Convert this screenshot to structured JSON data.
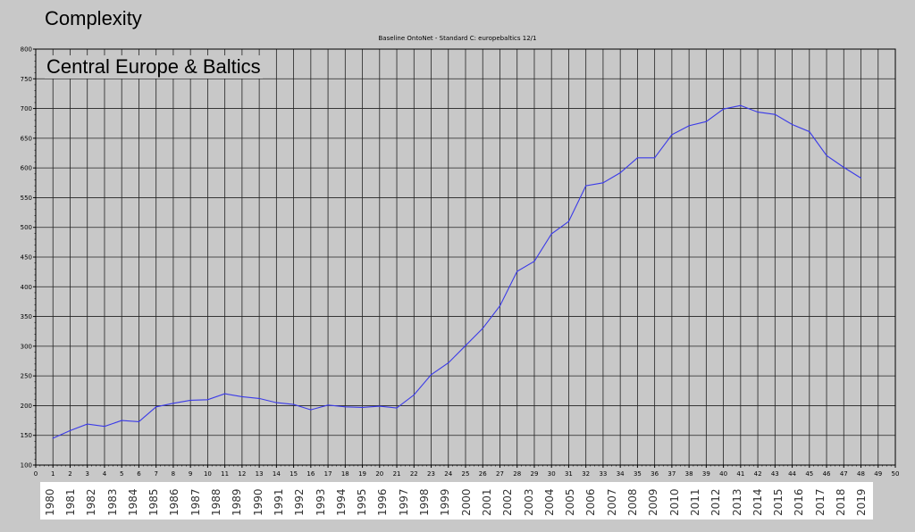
{
  "page_title": "Complexity",
  "region_label": "Central Europe & Baltics",
  "colors": {
    "background": "#c8c8c8",
    "grid": "#222222",
    "line": "#3a3ae8",
    "year_strip": "#ffffff"
  },
  "chart_data": {
    "type": "line",
    "title": "Baseline OntoNet - Standard C:  europebaltics   12/1",
    "xlabel": "",
    "ylabel": "",
    "xlim": [
      0,
      50
    ],
    "ylim": [
      100,
      800
    ],
    "x_ticks": [
      0,
      1,
      2,
      3,
      4,
      5,
      6,
      7,
      8,
      9,
      10,
      11,
      12,
      13,
      14,
      15,
      16,
      17,
      18,
      19,
      20,
      21,
      22,
      23,
      24,
      25,
      26,
      27,
      28,
      29,
      30,
      31,
      32,
      33,
      34,
      35,
      36,
      37,
      38,
      39,
      40,
      41,
      42,
      43,
      44,
      45,
      46,
      47,
      48,
      49,
      50
    ],
    "y_ticks": [
      100,
      150,
      200,
      250,
      300,
      350,
      400,
      450,
      500,
      550,
      600,
      650,
      700,
      750,
      800
    ],
    "grid": true,
    "legend": "none",
    "x": [
      1,
      2,
      3,
      4,
      5,
      6,
      7,
      8,
      9,
      10,
      11,
      12,
      13,
      14,
      15,
      16,
      17,
      18,
      19,
      20,
      21,
      22,
      23,
      24,
      25,
      26,
      27,
      28,
      29,
      30,
      31,
      32,
      33,
      34,
      35,
      36,
      37,
      38,
      39,
      40,
      41,
      42,
      43,
      44,
      45,
      46,
      47,
      48
    ],
    "series": [
      {
        "values": [
          145,
          158,
          169,
          165,
          175,
          173,
          198,
          204,
          209,
          210,
          220,
          215,
          212,
          205,
          202,
          193,
          201,
          198,
          197,
          199,
          196,
          218,
          252,
          272,
          301,
          330,
          368,
          426,
          443,
          489,
          510,
          570,
          575,
          592,
          617,
          617,
          656,
          671,
          678,
          699,
          705,
          694,
          690,
          673,
          661,
          621,
          601,
          583
        ]
      }
    ],
    "year_labels": [
      "1980",
      "1981",
      "1982",
      "1983",
      "1984",
      "1985",
      "1986",
      "1987",
      "1988",
      "1989",
      "1990",
      "1991",
      "1992",
      "1993",
      "1994",
      "1995",
      "1996",
      "1997",
      "1998",
      "1999",
      "2000",
      "2001",
      "2002",
      "2003",
      "2004",
      "2005",
      "2006",
      "2007",
      "2008",
      "2009",
      "2010",
      "2011",
      "2012",
      "2013",
      "2014",
      "2015",
      "2016",
      "2017",
      "2018",
      "2019"
    ]
  }
}
